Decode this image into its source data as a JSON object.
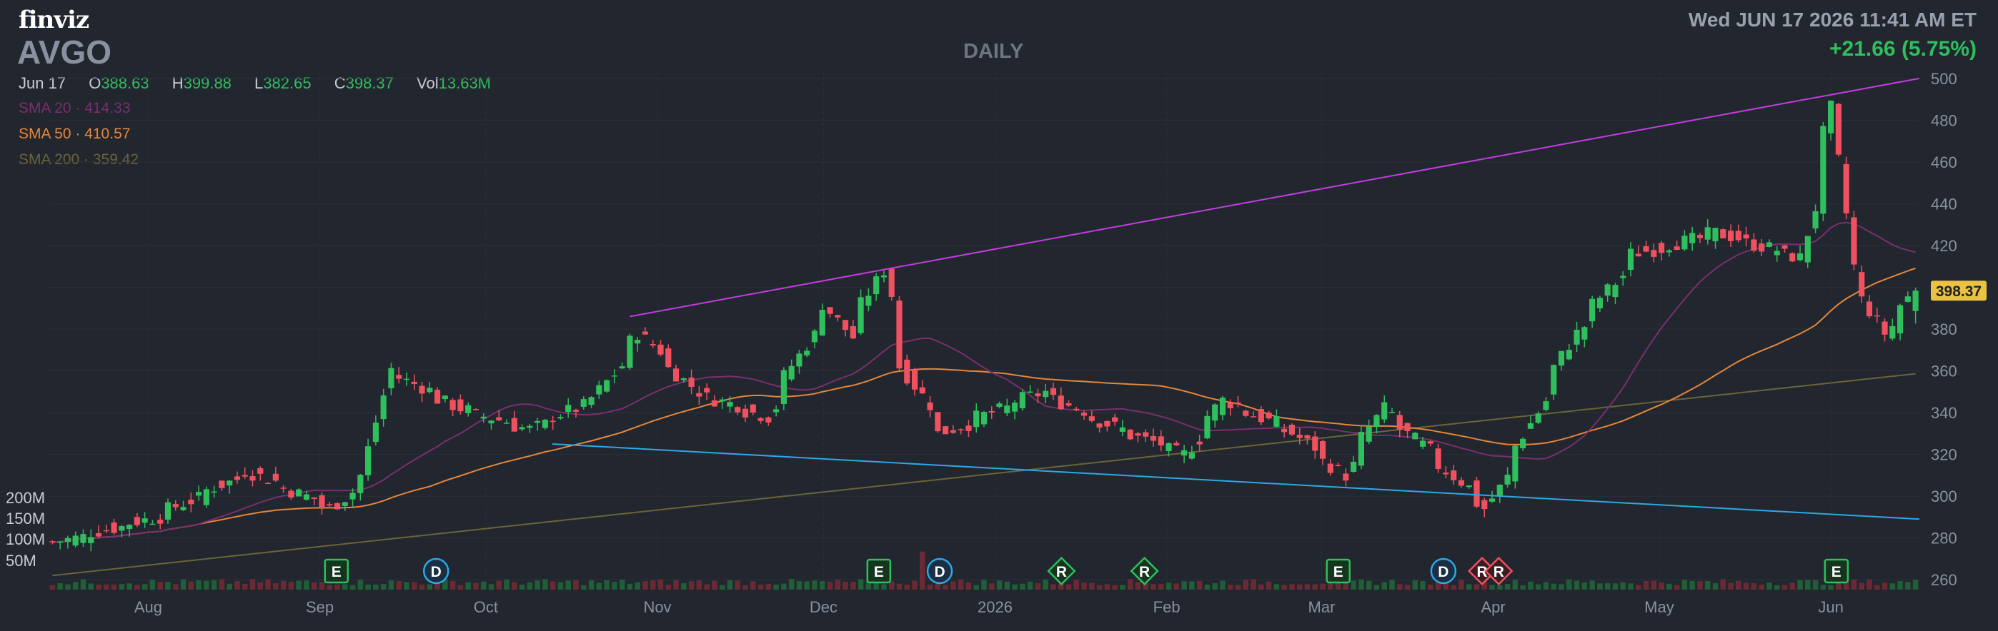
{
  "header": {
    "logo": "finviz",
    "ticker": "AVGO",
    "period": "DAILY",
    "datetime": "Wed JUN 17 2026 11:41 AM ET",
    "change": "+21.66 (5.75%)"
  },
  "ohlc": {
    "date": "Jun 17",
    "o_label": "O",
    "o": "388.63",
    "h_label": "H",
    "h": "399.88",
    "l_label": "L",
    "l": "382.65",
    "c_label": "C",
    "c": "398.37",
    "vol_label": "Vol",
    "vol": "13.63M"
  },
  "sma": {
    "sma20": "SMA 20 · 414.33",
    "sma50": "SMA 50 · 410.57",
    "sma200": "SMA 200 · 359.42"
  },
  "colors": {
    "up": "#2fbf5c",
    "down": "#f0515f",
    "sma20": "#7a2f6e",
    "sma50": "#e4873a",
    "sma200": "#6b6437",
    "upper_trendline": "#c43de0",
    "lower_trendline": "#2ea8e6",
    "price_tag": "#e9c243"
  },
  "chart_data": {
    "type": "candlestick",
    "y_axis": {
      "ticks": [
        "500",
        "480",
        "460",
        "440",
        "420",
        "400",
        "380",
        "360",
        "340",
        "320",
        "300",
        "280",
        "260"
      ],
      "range": [
        258,
        502
      ],
      "position": "right"
    },
    "volume_axis": {
      "ticks": [
        "200M",
        "150M",
        "100M",
        "50M"
      ]
    },
    "x_axis": {
      "ticks": [
        "Aug",
        "Sep",
        "Oct",
        "Nov",
        "Dec",
        "2026",
        "Feb",
        "Mar",
        "Apr",
        "May",
        "Jun"
      ]
    },
    "last_price_label": "398.37",
    "anchors": [
      {
        "month": "2025-07-14",
        "price": 278
      },
      {
        "month": "2025-08-01",
        "price": 290
      },
      {
        "month": "2025-08-18",
        "price": 312
      },
      {
        "month": "2025-09-02",
        "price": 294
      },
      {
        "month": "2025-09-08",
        "price": 310
      },
      {
        "month": "2025-09-12",
        "price": 361
      },
      {
        "month": "2025-09-25",
        "price": 342
      },
      {
        "month": "2025-10-08",
        "price": 332
      },
      {
        "month": "2025-10-20",
        "price": 347
      },
      {
        "month": "2025-10-28",
        "price": 378
      },
      {
        "month": "2025-11-07",
        "price": 350
      },
      {
        "month": "2025-11-20",
        "price": 338
      },
      {
        "month": "2025-12-01",
        "price": 392
      },
      {
        "month": "2025-12-05",
        "price": 376
      },
      {
        "month": "2025-12-11",
        "price": 408
      },
      {
        "month": "2025-12-15",
        "price": 362
      },
      {
        "month": "2025-12-22",
        "price": 330
      },
      {
        "month": "2026-01-09",
        "price": 350
      },
      {
        "month": "2026-01-23",
        "price": 332
      },
      {
        "month": "2026-02-04",
        "price": 320
      },
      {
        "month": "2026-02-11",
        "price": 346
      },
      {
        "month": "2026-02-24",
        "price": 330
      },
      {
        "month": "2026-03-05",
        "price": 310
      },
      {
        "month": "2026-03-12",
        "price": 342
      },
      {
        "month": "2026-03-24",
        "price": 312
      },
      {
        "month": "2026-03-31",
        "price": 294
      },
      {
        "month": "2026-04-06",
        "price": 324
      },
      {
        "month": "2026-04-16",
        "price": 378
      },
      {
        "month": "2026-04-27",
        "price": 416
      },
      {
        "month": "2026-05-12",
        "price": 426
      },
      {
        "month": "2026-05-27",
        "price": 414
      },
      {
        "month": "2026-06-02",
        "price": 486
      },
      {
        "month": "2026-06-05",
        "price": 410
      },
      {
        "month": "2026-06-11",
        "price": 378
      },
      {
        "month": "2026-06-17",
        "price": 398.37
      }
    ],
    "trendlines": [
      {
        "name": "upper",
        "from": {
          "date": "2025-10-27",
          "price": 386
        },
        "to": {
          "date": "2026-06-17",
          "price": 500
        }
      },
      {
        "name": "lower",
        "from": {
          "date": "2025-10-13",
          "price": 325
        },
        "to": {
          "date": "2026-06-17",
          "price": 289
        }
      }
    ],
    "events": [
      {
        "label": "E",
        "date": "2025-09-04",
        "shape": "square",
        "color": "#2fbf5c"
      },
      {
        "label": "D",
        "date": "2025-09-22",
        "shape": "circle",
        "color": "#2ea8e6"
      },
      {
        "label": "E",
        "date": "2025-12-11",
        "shape": "square",
        "color": "#2fbf5c"
      },
      {
        "label": "D",
        "date": "2025-12-22",
        "shape": "circle",
        "color": "#2ea8e6"
      },
      {
        "label": "R",
        "date": "2026-01-13",
        "shape": "diamond",
        "color": "#2fbf5c"
      },
      {
        "label": "R",
        "date": "2026-01-28",
        "shape": "diamond",
        "color": "#2fbf5c"
      },
      {
        "label": "E",
        "date": "2026-03-04",
        "shape": "square",
        "color": "#2fbf5c"
      },
      {
        "label": "D",
        "date": "2026-03-23",
        "shape": "circle",
        "color": "#2ea8e6"
      },
      {
        "label": "R",
        "date": "2026-03-30",
        "shape": "diamond",
        "color": "#f0515f"
      },
      {
        "label": "R",
        "date": "2026-04-02",
        "shape": "diamond",
        "color": "#f0515f"
      },
      {
        "label": "E",
        "date": "2026-06-02",
        "shape": "square",
        "color": "#2fbf5c"
      }
    ]
  }
}
